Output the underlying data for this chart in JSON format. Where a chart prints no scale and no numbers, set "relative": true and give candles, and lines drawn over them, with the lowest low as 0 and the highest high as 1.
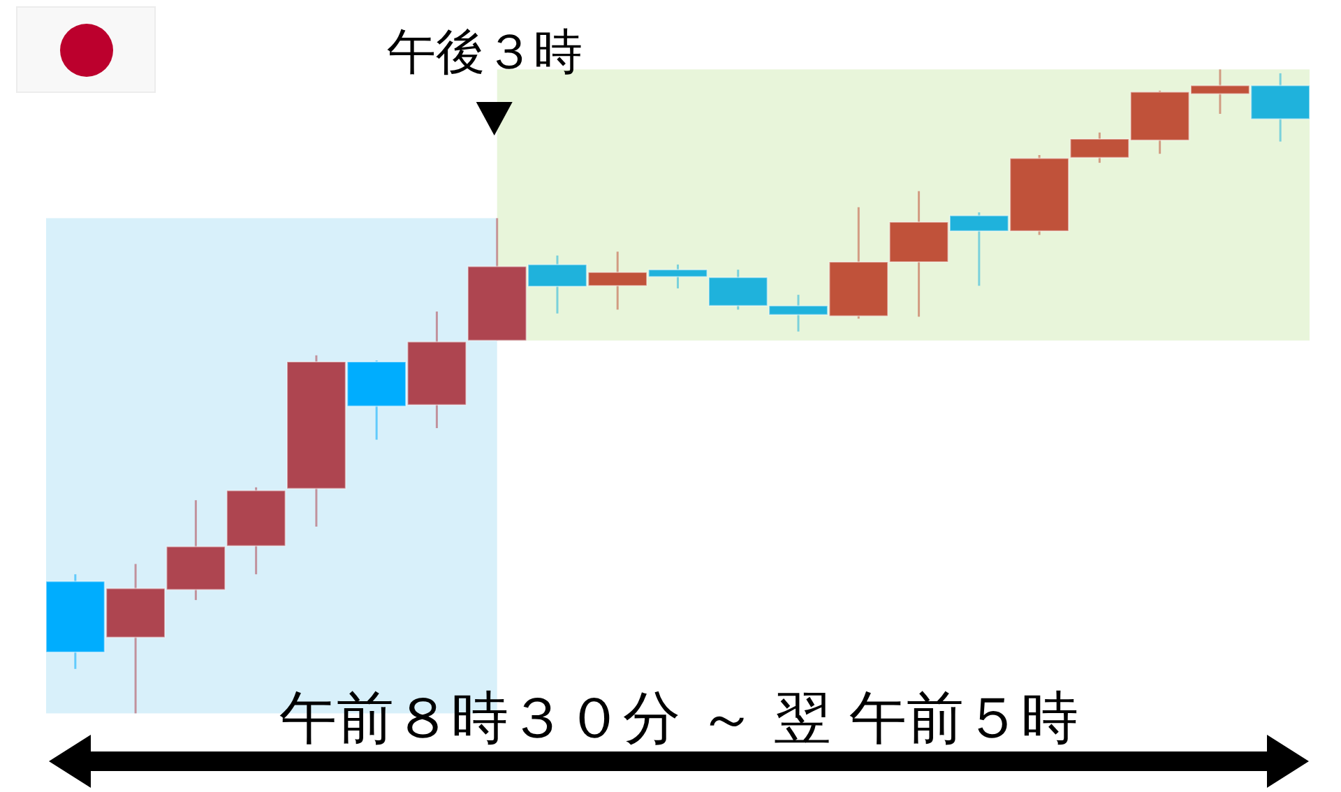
{
  "chart_data": {
    "type": "candlestick",
    "relative": true,
    "categories": [
      null,
      null,
      null,
      null,
      null,
      null,
      null,
      null,
      null,
      null,
      null,
      null,
      null,
      null,
      null,
      null,
      null,
      null,
      null,
      null,
      null
    ],
    "ohlc": [
      [
        0.205,
        0.216,
        0.069,
        0.095
      ],
      [
        0.118,
        0.232,
        0.0,
        0.194
      ],
      [
        0.192,
        0.331,
        0.176,
        0.259
      ],
      [
        0.26,
        0.351,
        0.216,
        0.346
      ],
      [
        0.349,
        0.556,
        0.29,
        0.546
      ],
      [
        0.546,
        0.548,
        0.425,
        0.477
      ],
      [
        0.479,
        0.624,
        0.443,
        0.577
      ],
      [
        0.579,
        0.769,
        0.579,
        0.694
      ],
      [
        0.697,
        0.711,
        0.621,
        0.663
      ],
      [
        0.664,
        0.717,
        0.627,
        0.685
      ],
      [
        0.689,
        0.697,
        0.66,
        0.678
      ],
      [
        0.677,
        0.689,
        0.627,
        0.633
      ],
      [
        0.633,
        0.65,
        0.593,
        0.619
      ],
      [
        0.617,
        0.786,
        0.613,
        0.701
      ],
      [
        0.701,
        0.811,
        0.616,
        0.763
      ],
      [
        0.773,
        0.778,
        0.664,
        0.749
      ],
      [
        0.749,
        0.867,
        0.743,
        0.862
      ],
      [
        0.863,
        0.902,
        0.855,
        0.892
      ],
      [
        0.89,
        0.967,
        0.869,
        0.965
      ],
      [
        0.962,
        1.0,
        0.931,
        0.975
      ],
      [
        0.975,
        0.994,
        0.888,
        0.923
      ]
    ],
    "colors": [
      "#00adfe",
      "#ae4550",
      "#ae4550",
      "#ae4550",
      "#ae4550",
      "#00adfe",
      "#ae4550",
      "#ae4550",
      "#1fb2dc",
      "#c0523a",
      "#1fb2dc",
      "#1fb2dc",
      "#1fb2dc",
      "#c0523a",
      "#c0523a",
      "#1fb2dc",
      "#c0523a",
      "#c0523a",
      "#c0523a",
      "#c0523a",
      "#1fb2dc"
    ],
    "annotations": [
      "午後３時",
      "午前８時３０分 ～ 翌 午前５時"
    ]
  }
}
